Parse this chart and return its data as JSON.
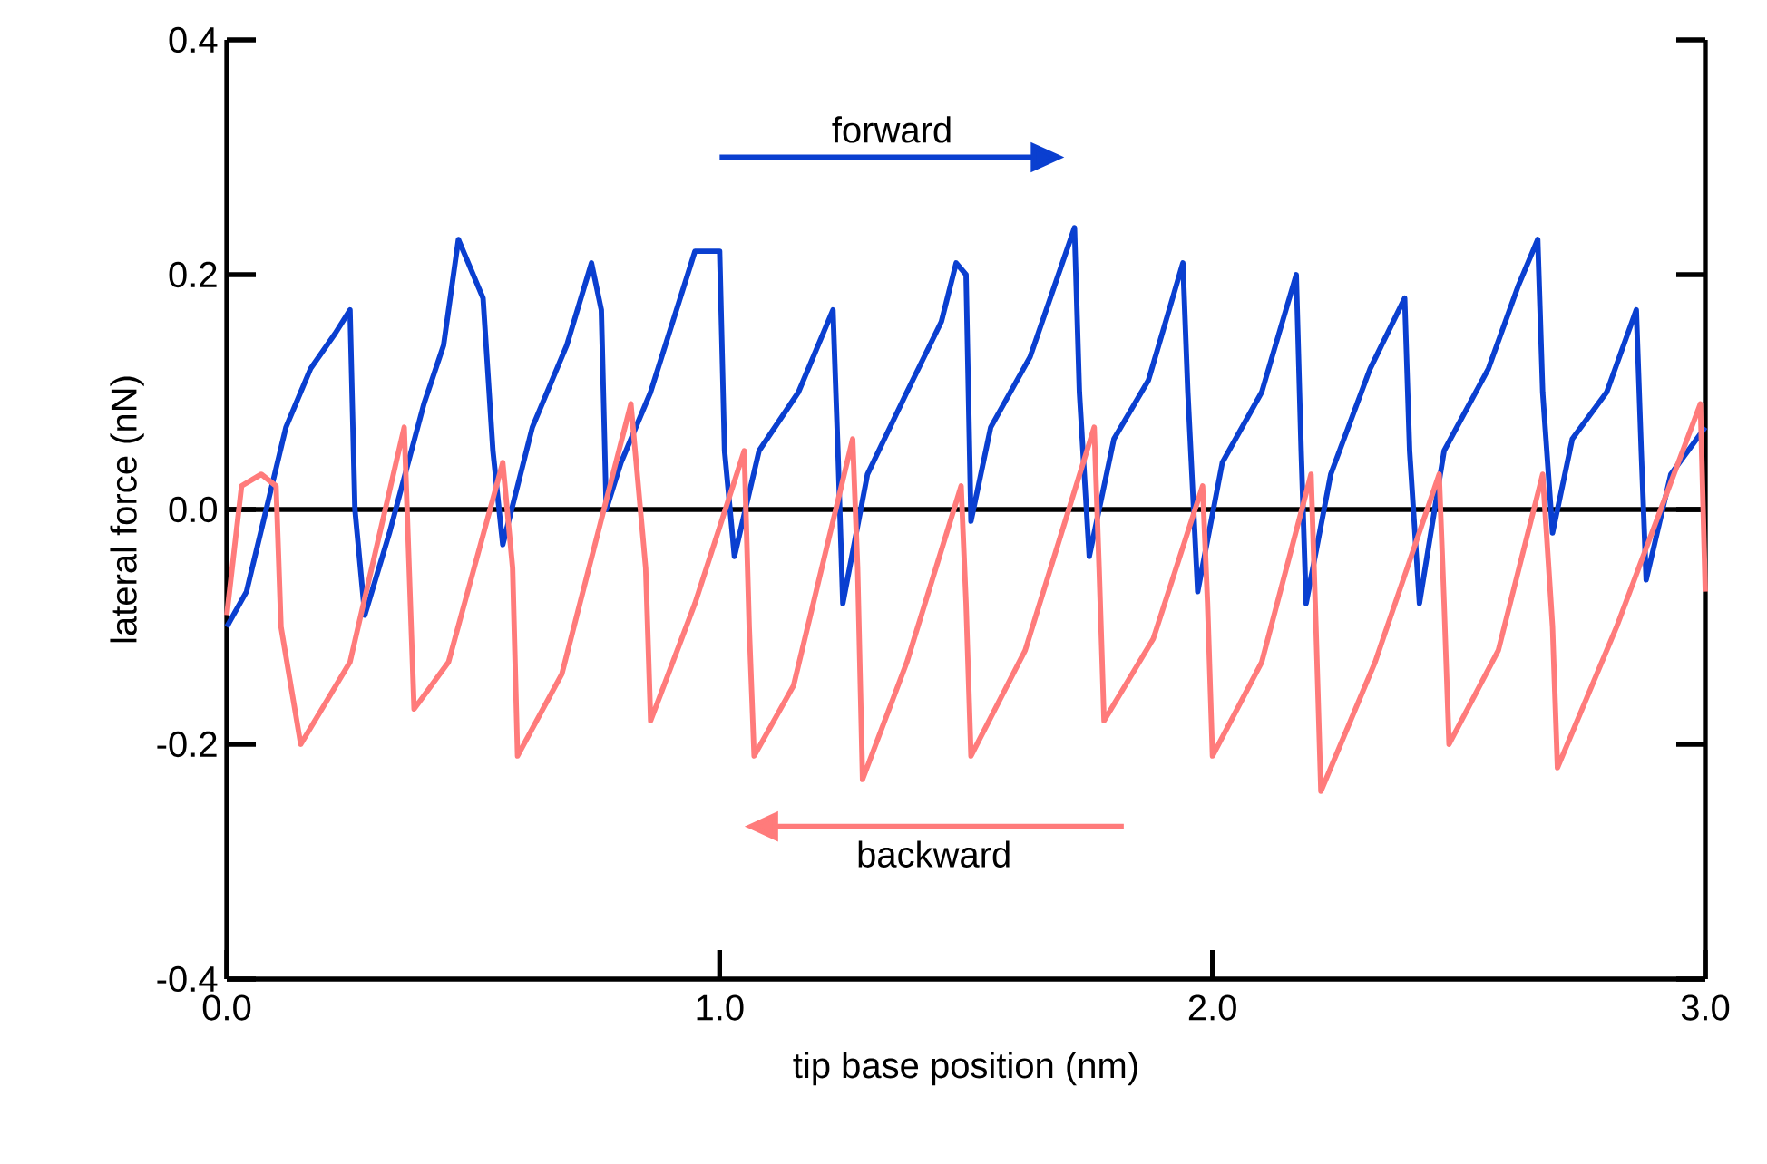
{
  "chart_data": {
    "type": "line",
    "xlabel": "tip base position (nm)",
    "ylabel": "lateral force (nN)",
    "xlim": [
      0,
      3
    ],
    "ylim": [
      -0.4,
      0.4
    ],
    "xticks": [
      {
        "value": 0,
        "label": "0.0"
      },
      {
        "value": 1,
        "label": "1.0"
      },
      {
        "value": 2,
        "label": "2.0"
      },
      {
        "value": 3,
        "label": "3.0"
      }
    ],
    "yticks": [
      {
        "value": -0.4,
        "label": "-0.4"
      },
      {
        "value": -0.2,
        "label": "-0.2"
      },
      {
        "value": 0,
        "label": "0.0"
      },
      {
        "value": 0.2,
        "label": "0.2"
      },
      {
        "value": 0.4,
        "label": "0.4"
      }
    ],
    "annotations": [
      "forward",
      "backward"
    ],
    "grid": false,
    "marker": "none",
    "line_style": "solid",
    "ref_lines": [
      {
        "axis": "y",
        "value": 0,
        "color": "#000000"
      }
    ],
    "series": [
      {
        "color": "#0a3fd0",
        "x": [
          0.0,
          0.04,
          0.08,
          0.12,
          0.17,
          0.22,
          0.25,
          0.26,
          0.28,
          0.33,
          0.4,
          0.44,
          0.47,
          0.52,
          0.54,
          0.56,
          0.62,
          0.69,
          0.74,
          0.76,
          0.77,
          0.8,
          0.86,
          0.92,
          0.95,
          1.0,
          1.01,
          1.03,
          1.08,
          1.16,
          1.23,
          1.24,
          1.25,
          1.3,
          1.38,
          1.45,
          1.48,
          1.5,
          1.51,
          1.55,
          1.63,
          1.72,
          1.73,
          1.75,
          1.8,
          1.87,
          1.94,
          1.95,
          1.97,
          2.02,
          2.1,
          2.17,
          2.18,
          2.19,
          2.24,
          2.32,
          2.39,
          2.4,
          2.42,
          2.47,
          2.56,
          2.62,
          2.66,
          2.67,
          2.69,
          2.73,
          2.8,
          2.86,
          2.87,
          2.88,
          2.93,
          3.0
        ],
        "values": [
          -0.1,
          -0.07,
          0.0,
          0.07,
          0.12,
          0.15,
          0.17,
          0.0,
          -0.09,
          -0.02,
          0.09,
          0.14,
          0.23,
          0.18,
          0.05,
          -0.03,
          0.07,
          0.14,
          0.21,
          0.17,
          0.0,
          0.04,
          0.1,
          0.18,
          0.22,
          0.22,
          0.05,
          -0.04,
          0.05,
          0.1,
          0.17,
          0.05,
          -0.08,
          0.03,
          0.1,
          0.16,
          0.21,
          0.2,
          -0.01,
          0.07,
          0.13,
          0.24,
          0.1,
          -0.04,
          0.06,
          0.11,
          0.21,
          0.1,
          -0.07,
          0.04,
          0.1,
          0.2,
          0.05,
          -0.08,
          0.03,
          0.12,
          0.18,
          0.05,
          -0.08,
          0.05,
          0.12,
          0.19,
          0.23,
          0.1,
          -0.02,
          0.06,
          0.1,
          0.17,
          0.05,
          -0.06,
          0.03,
          0.07
        ]
      },
      {
        "color": "#ff7b7b",
        "x": [
          0.0,
          0.03,
          0.07,
          0.1,
          0.11,
          0.15,
          0.25,
          0.36,
          0.37,
          0.38,
          0.45,
          0.56,
          0.58,
          0.59,
          0.68,
          0.82,
          0.85,
          0.86,
          0.95,
          1.05,
          1.06,
          1.07,
          1.15,
          1.27,
          1.28,
          1.29,
          1.38,
          1.49,
          1.5,
          1.51,
          1.62,
          1.76,
          1.77,
          1.78,
          1.88,
          1.98,
          1.99,
          2.0,
          2.1,
          2.2,
          2.21,
          2.22,
          2.33,
          2.46,
          2.47,
          2.48,
          2.58,
          2.67,
          2.69,
          2.7,
          2.82,
          2.99,
          3.0
        ],
        "values": [
          -0.09,
          0.02,
          0.03,
          0.02,
          -0.1,
          -0.2,
          -0.13,
          0.07,
          -0.05,
          -0.17,
          -0.13,
          0.04,
          -0.05,
          -0.21,
          -0.14,
          0.09,
          -0.05,
          -0.18,
          -0.08,
          0.05,
          -0.1,
          -0.21,
          -0.15,
          0.06,
          -0.05,
          -0.23,
          -0.13,
          0.02,
          -0.08,
          -0.21,
          -0.12,
          0.07,
          -0.05,
          -0.18,
          -0.11,
          0.02,
          -0.08,
          -0.21,
          -0.13,
          0.03,
          -0.1,
          -0.24,
          -0.13,
          0.03,
          -0.08,
          -0.2,
          -0.12,
          0.03,
          -0.1,
          -0.22,
          -0.1,
          0.09,
          -0.07
        ]
      }
    ]
  }
}
